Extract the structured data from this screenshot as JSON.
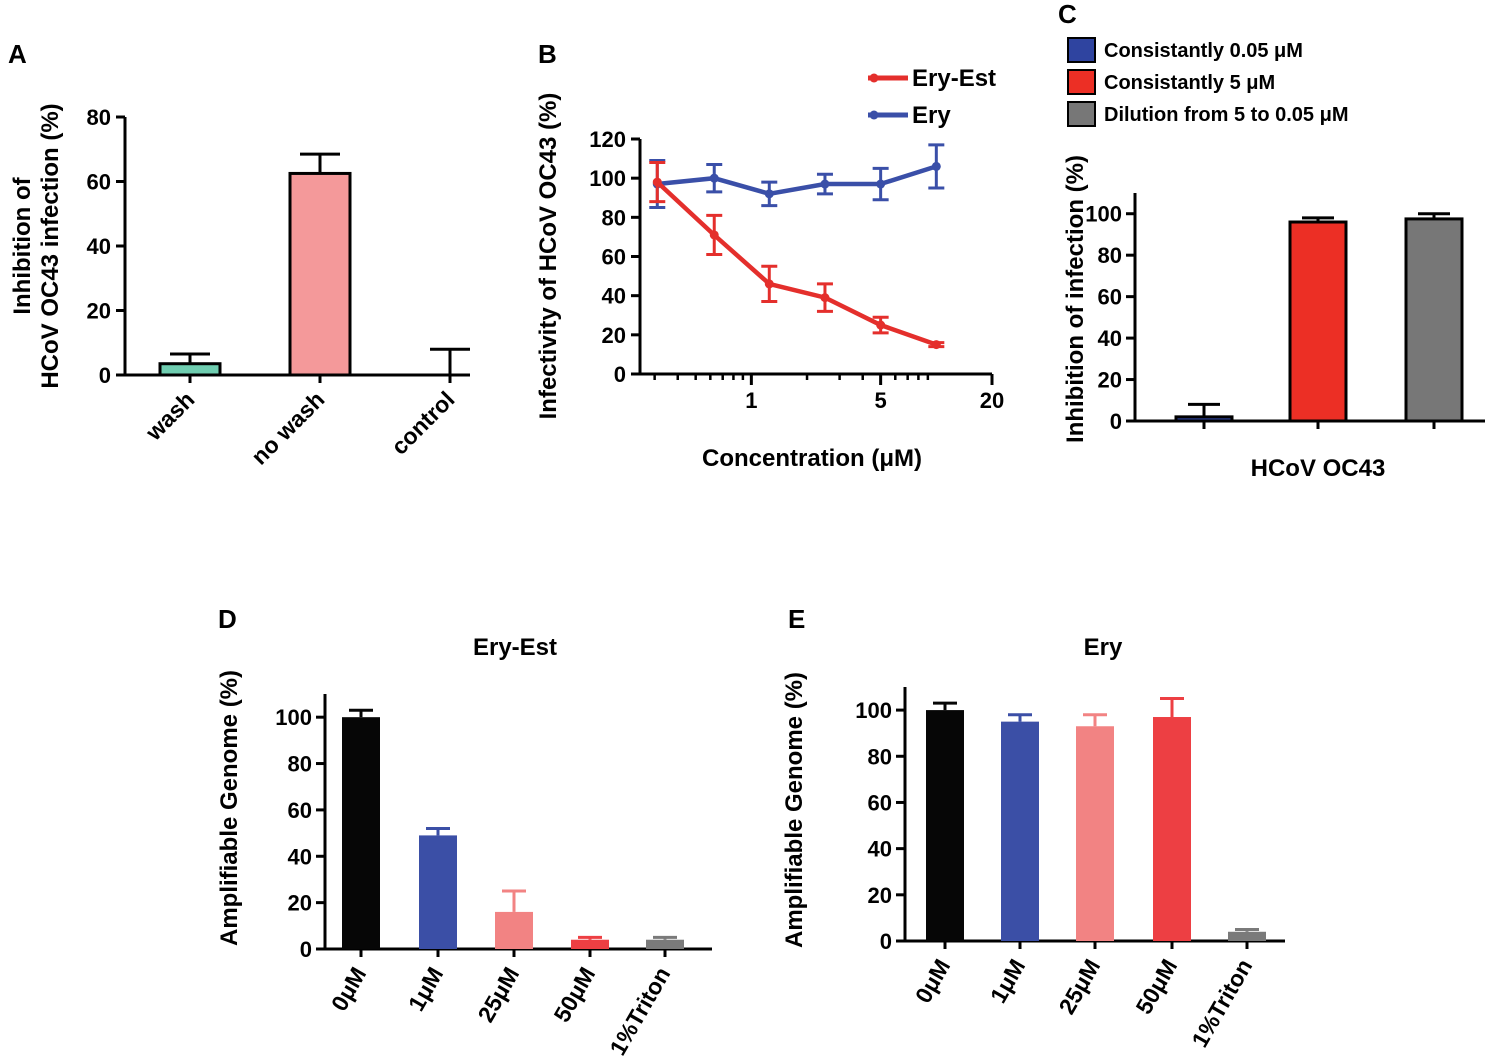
{
  "colors": {
    "teal": "#6fcdb0",
    "pink": "#f4999a",
    "red": "#e4262b",
    "blue": "#2f47a2",
    "ery_est_red": "#e42f2c",
    "ery_blue": "#3a4fa8",
    "c_blue": "#2f44a0",
    "c_red": "#ec2f25",
    "c_gray": "#777777",
    "black": "#060606",
    "de_blue": "#3b4fa6",
    "de_pink": "#f28383",
    "de_red": "#ed3f43",
    "de_gray": "#7a7a7a"
  },
  "chart_data": [
    {
      "panel": "A",
      "type": "bar",
      "ylabel_lines": [
        "Inhibition of",
        "HCoV OC43 infection (%)"
      ],
      "categories": [
        "wash",
        "no wash",
        "control"
      ],
      "values": [
        3.5,
        62.5,
        0
      ],
      "errors": [
        3,
        6,
        8
      ],
      "bar_colors": [
        "#6fcdb0",
        "#f4999a",
        "#ffffff"
      ],
      "ylim": [
        0,
        80
      ],
      "yticks": [
        0,
        20,
        40,
        60,
        80
      ]
    },
    {
      "panel": "B",
      "type": "line",
      "ylabel": "Infectivity of HCoV OC43 (%)",
      "xlabel": "Concentration (μM)",
      "xscale": "log",
      "xlim": [
        0.25,
        20
      ],
      "xticks": [
        1,
        5,
        20
      ],
      "xtick_labels": [
        "1",
        "5",
        "20"
      ],
      "ylim": [
        0,
        120
      ],
      "yticks": [
        0,
        20,
        40,
        60,
        80,
        100,
        120
      ],
      "legend_position": "top-right",
      "series": [
        {
          "name": "Ery-Est",
          "color": "#e42f2c",
          "x": [
            0.31,
            0.63,
            1.25,
            2.5,
            5,
            10
          ],
          "y": [
            98,
            71,
            46,
            39,
            25,
            15
          ],
          "err": [
            10,
            10,
            9,
            7,
            4,
            1
          ]
        },
        {
          "name": "Ery",
          "color": "#3a4fa8",
          "x": [
            0.31,
            0.63,
            1.25,
            2.5,
            5,
            10
          ],
          "y": [
            97,
            100,
            92,
            97,
            97,
            106
          ],
          "err": [
            12,
            7,
            6,
            5,
            8,
            11
          ]
        }
      ]
    },
    {
      "panel": "C",
      "type": "bar",
      "ylabel": "Inhibition of  infection (%)",
      "xlabel": "HCoV OC43",
      "ylim": [
        0,
        110
      ],
      "yticks": [
        0,
        20,
        40,
        60,
        80,
        100
      ],
      "legend_position": "top",
      "series": [
        {
          "name": "Consistantly 0.05 μM",
          "value": 2,
          "err": 6,
          "color": "#2f44a0"
        },
        {
          "name": "Consistantly 5 μM",
          "value": 96,
          "err": 2,
          "color": "#ec2f25"
        },
        {
          "name": "Dilution from 5 to 0.05 μM",
          "value": 97.5,
          "err": 2.5,
          "color": "#777777"
        }
      ]
    },
    {
      "panel": "D",
      "type": "bar",
      "title": "Ery-Est",
      "ylabel": "Amplifiable Genome (%)",
      "categories": [
        "0μM",
        "1μM",
        "25μM",
        "50μM",
        "1%Triton"
      ],
      "values": [
        100,
        49,
        16,
        4,
        4
      ],
      "errors": [
        3,
        3,
        9,
        1,
        1
      ],
      "bar_colors": [
        "#060606",
        "#3b4fa6",
        "#f28383",
        "#ed3f43",
        "#7a7a7a"
      ],
      "ylim": [
        0,
        110
      ],
      "yticks": [
        0,
        20,
        40,
        60,
        80,
        100
      ]
    },
    {
      "panel": "E",
      "type": "bar",
      "title": "Ery",
      "ylabel": "Amplifiable Genome (%)",
      "categories": [
        "0μM",
        "1μM",
        "25μM",
        "50μM",
        "1%Triton"
      ],
      "values": [
        100,
        95,
        93,
        97,
        4
      ],
      "errors": [
        3,
        3,
        5,
        8,
        1
      ],
      "bar_colors": [
        "#060606",
        "#3b4fa6",
        "#f28383",
        "#ed3f43",
        "#7a7a7a"
      ],
      "ylim": [
        0,
        110
      ],
      "yticks": [
        0,
        20,
        40,
        60,
        80,
        100
      ]
    }
  ]
}
